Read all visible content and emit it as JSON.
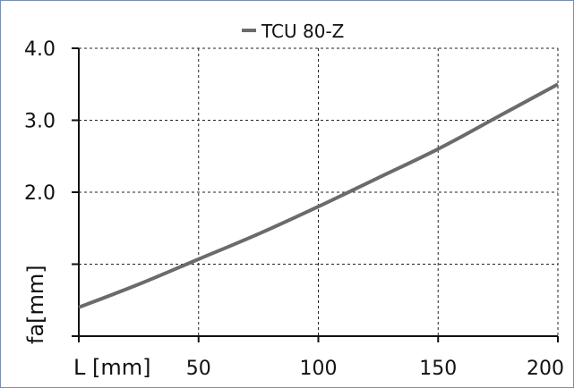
{
  "chart_data": {
    "type": "line",
    "title": "",
    "xlabel": "L [mm]",
    "ylabel": "fa[mm]",
    "x_ticks": [
      50,
      100,
      150,
      200
    ],
    "y_ticks": [
      "2.0",
      "3.0",
      "4.0"
    ],
    "xlim": [
      0,
      200
    ],
    "ylim": [
      0,
      4.0
    ],
    "grid": true,
    "legend": "top",
    "series": [
      {
        "name": "TCU 80-Z",
        "color": "#6b6b6b",
        "x": [
          0,
          25,
          50,
          75,
          100,
          125,
          150,
          175,
          200
        ],
        "y": [
          0.4,
          0.72,
          1.07,
          1.42,
          1.8,
          2.2,
          2.6,
          3.05,
          3.5
        ]
      }
    ]
  }
}
